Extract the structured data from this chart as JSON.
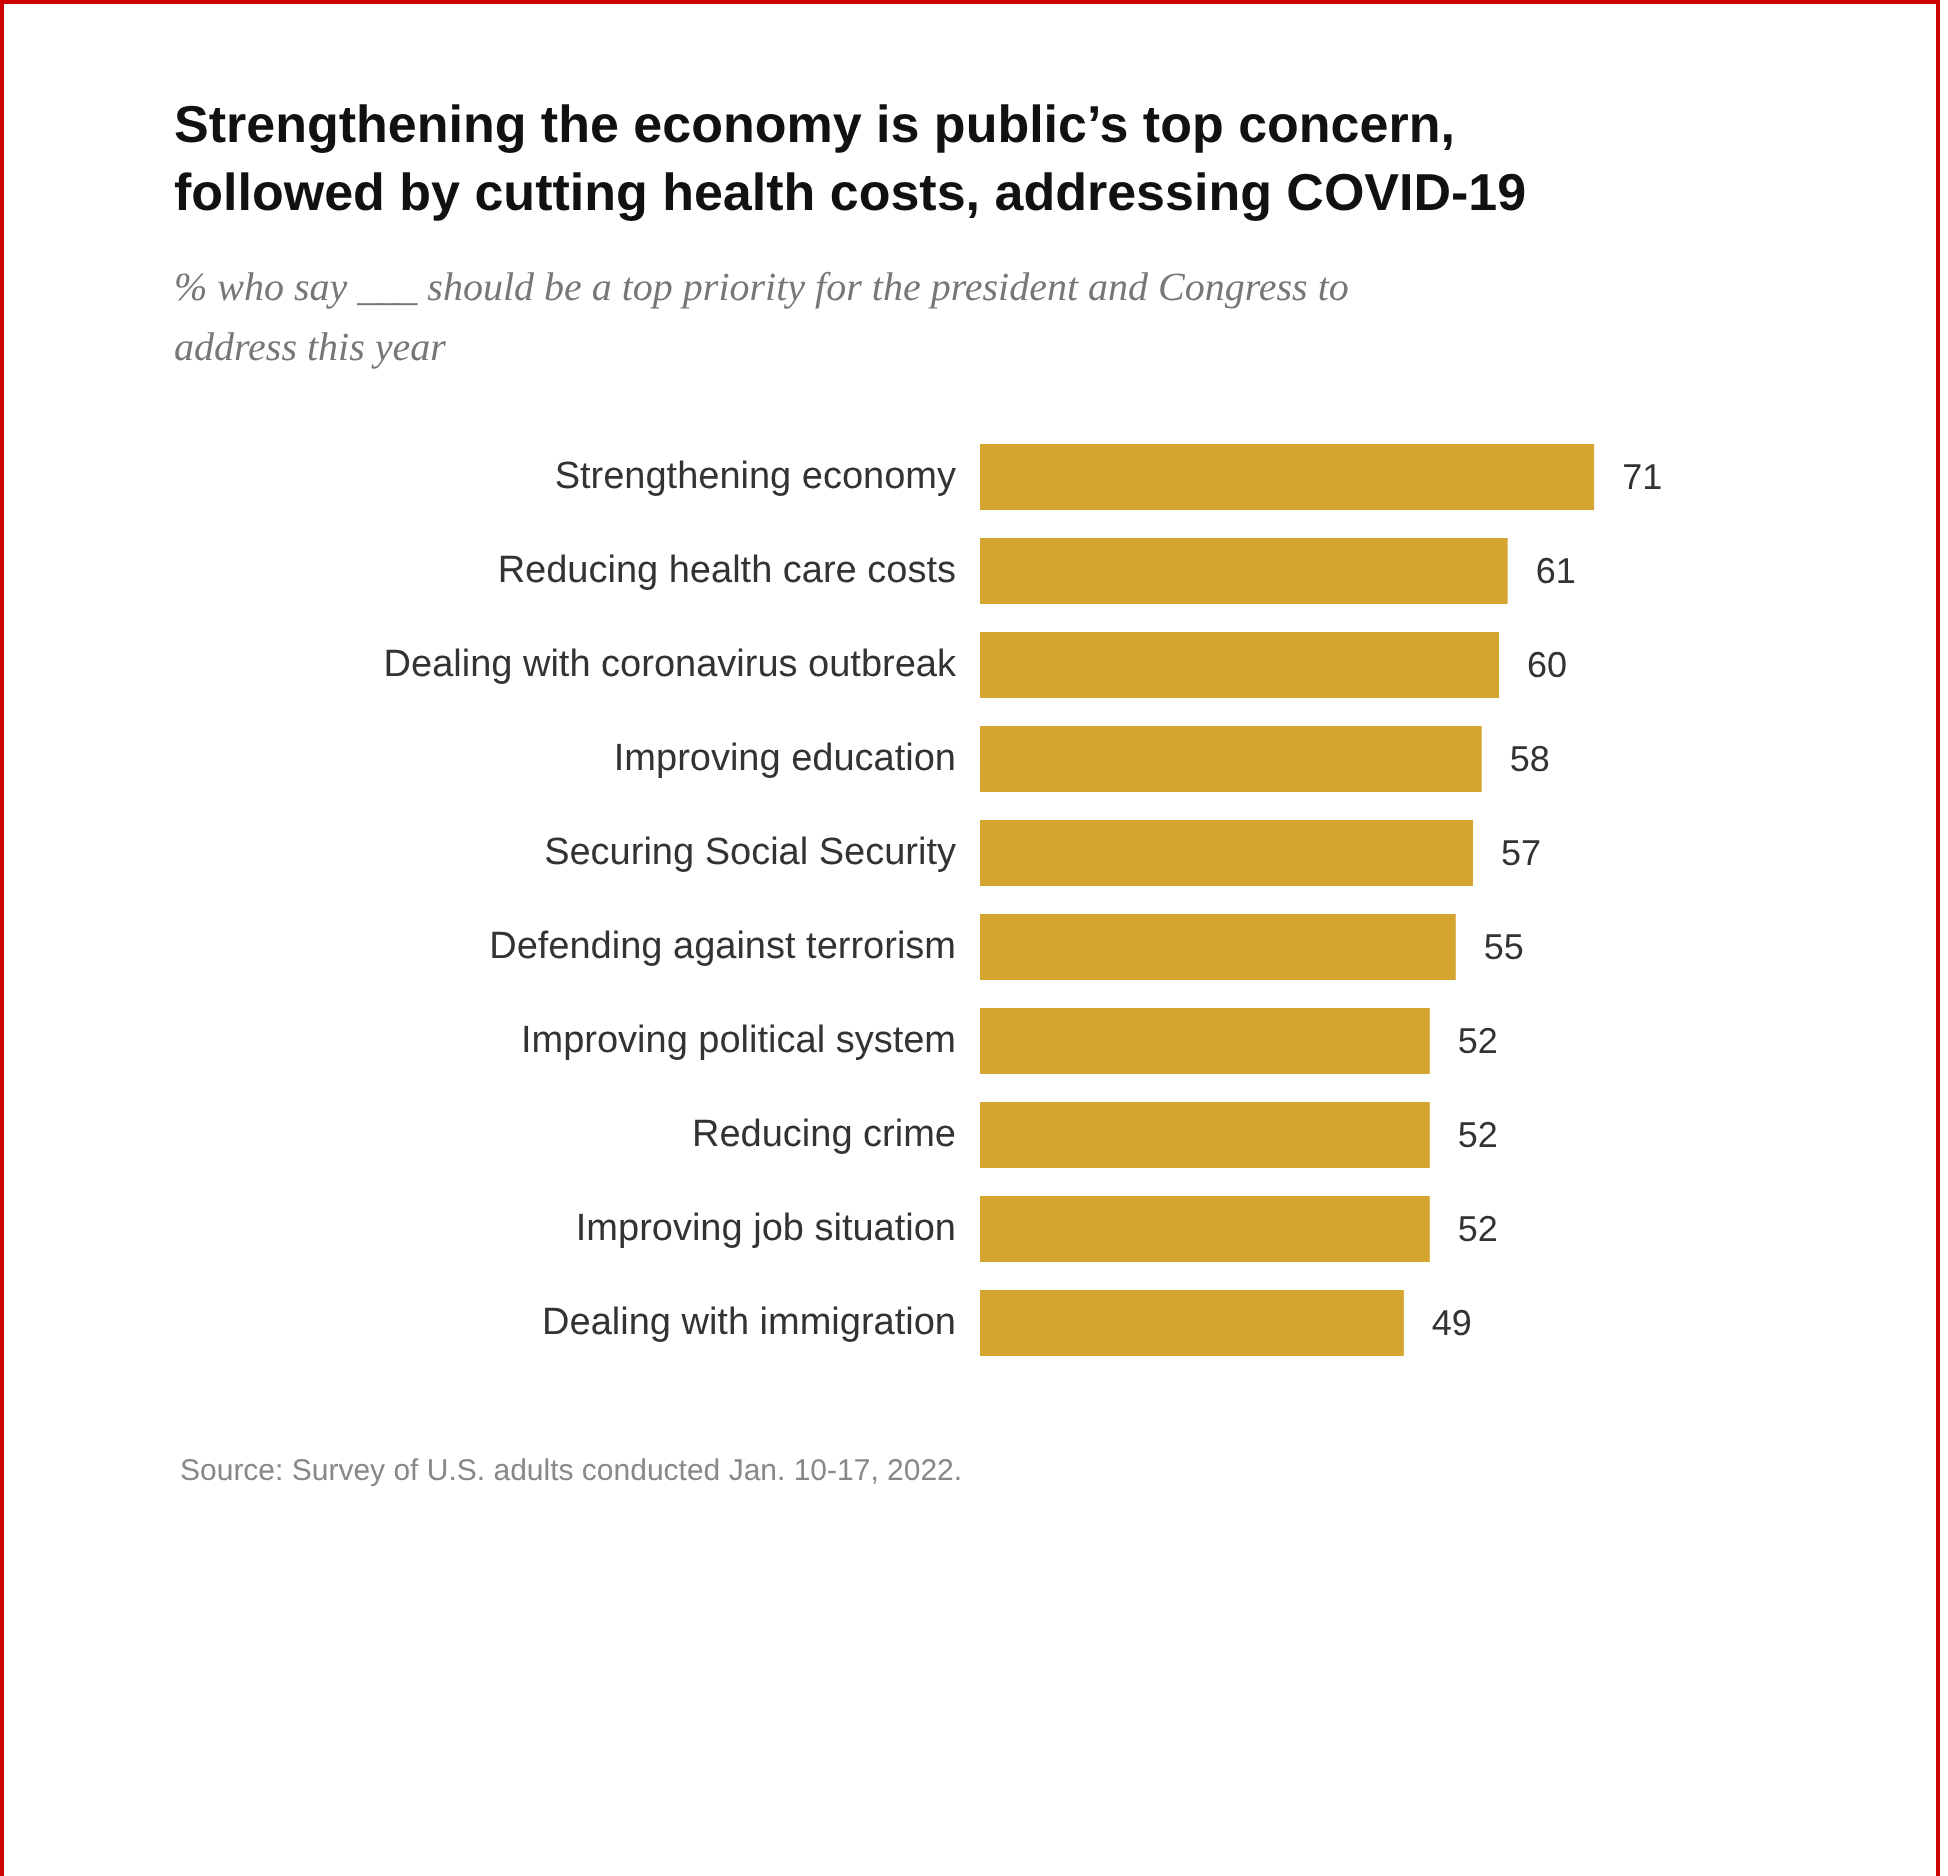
{
  "chart_data": {
    "type": "bar",
    "orientation": "horizontal",
    "title": "Strengthening the economy is public’s top concern,\nfollowed by cutting health costs, addressing COVID-19",
    "subtitle": "% who say ___ should be a top priority for the president and Congress to\naddress this year",
    "categories": [
      "Strengthening economy",
      "Reducing health care costs",
      "Dealing with coronavirus outbreak",
      "Improving education",
      "Securing Social Security",
      "Defending against terrorism",
      "Improving political system",
      "Reducing crime",
      "Improving job situation",
      "Dealing with immigration"
    ],
    "values": [
      71,
      61,
      60,
      58,
      57,
      55,
      52,
      52,
      52,
      49
    ],
    "color": "#d4a52f",
    "data_labels": true,
    "annotations": [
      "Source: Survey of U.S. adults conducted Jan. 10-17, 2022."
    ]
  }
}
